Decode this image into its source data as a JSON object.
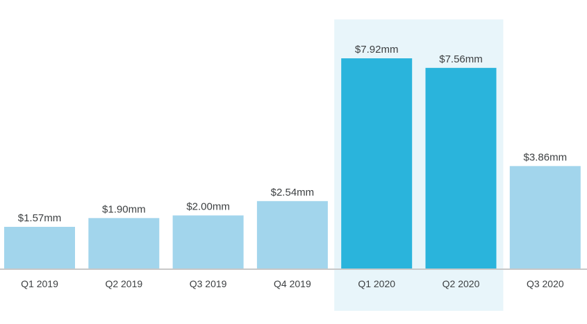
{
  "chart_data": {
    "type": "bar",
    "categories": [
      "Q1 2019",
      "Q2 2019",
      "Q3 2019",
      "Q4 2019",
      "Q1 2020",
      "Q2 2020",
      "Q3 2020"
    ],
    "values": [
      1.57,
      1.9,
      2.0,
      2.54,
      7.92,
      7.56,
      3.86
    ],
    "data_labels": [
      "$1.57mm",
      "$1.90mm",
      "$2.00mm",
      "$2.54mm",
      "$7.92mm",
      "$7.56mm",
      "$3.86mm"
    ],
    "highlighted_categories": [
      "Q1 2020",
      "Q2 2020"
    ],
    "title": "",
    "xlabel": "",
    "ylabel": "",
    "ylim": [
      0,
      8.5
    ],
    "grid": false,
    "legend": "none",
    "colors": {
      "bar": "#a2d5ec",
      "bar_highlight": "#2ab4dc",
      "highlight_band": "#e8f5fa",
      "axis": "#c8c8c8",
      "text": "#3c3f41"
    }
  }
}
